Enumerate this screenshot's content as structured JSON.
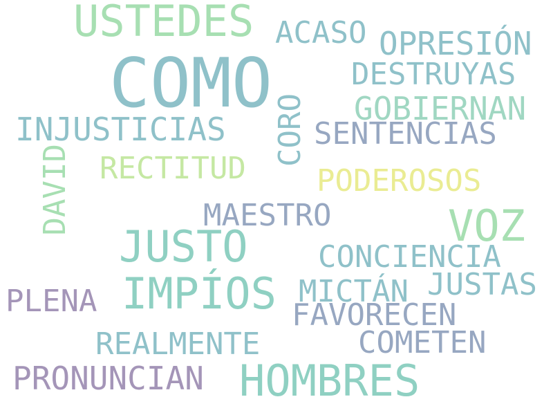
{
  "words": [
    {
      "text": "COMO",
      "color": "#8fc1c9"
    },
    {
      "text": "USTEDES",
      "color": "#a7dfb2"
    },
    {
      "text": "ACASO",
      "color": "#8fc1c9"
    },
    {
      "text": "OPRESIÓN",
      "color": "#8fc1c9"
    },
    {
      "text": "DESTRUYAS",
      "color": "#8fc1c9"
    },
    {
      "text": "GOBIERNAN",
      "color": "#a0d7c2"
    },
    {
      "text": "CORO",
      "color": "#8fc1c9"
    },
    {
      "text": "INJUSTICIAS",
      "color": "#8fc1c9"
    },
    {
      "text": "SENTENCIAS",
      "color": "#97a7c1"
    },
    {
      "text": "DAVID",
      "color": "#a7dfb2"
    },
    {
      "text": "RECTITUD",
      "color": "#c5e8a3"
    },
    {
      "text": "PODEROSOS",
      "color": "#eaec93"
    },
    {
      "text": "MAESTRO",
      "color": "#97a7c1"
    },
    {
      "text": "VOZ",
      "color": "#a7dfb2"
    },
    {
      "text": "JUSTO",
      "color": "#8fd0c2"
    },
    {
      "text": "CONCIENCIA",
      "color": "#8fc1c9"
    },
    {
      "text": "JUSTAS",
      "color": "#8fc1c9"
    },
    {
      "text": "MICTÁN",
      "color": "#8fc1c9"
    },
    {
      "text": "PLENA",
      "color": "#a495b8"
    },
    {
      "text": "IMPÍOS",
      "color": "#8fd0c2"
    },
    {
      "text": "FAVORECEN",
      "color": "#97a7c1"
    },
    {
      "text": "REALMENTE",
      "color": "#8fc1c9"
    },
    {
      "text": "COMETEN",
      "color": "#97a7c1"
    },
    {
      "text": "PRONUNCIAN",
      "color": "#a495b8"
    },
    {
      "text": "HOMBRES",
      "color": "#8fd0c2"
    }
  ]
}
